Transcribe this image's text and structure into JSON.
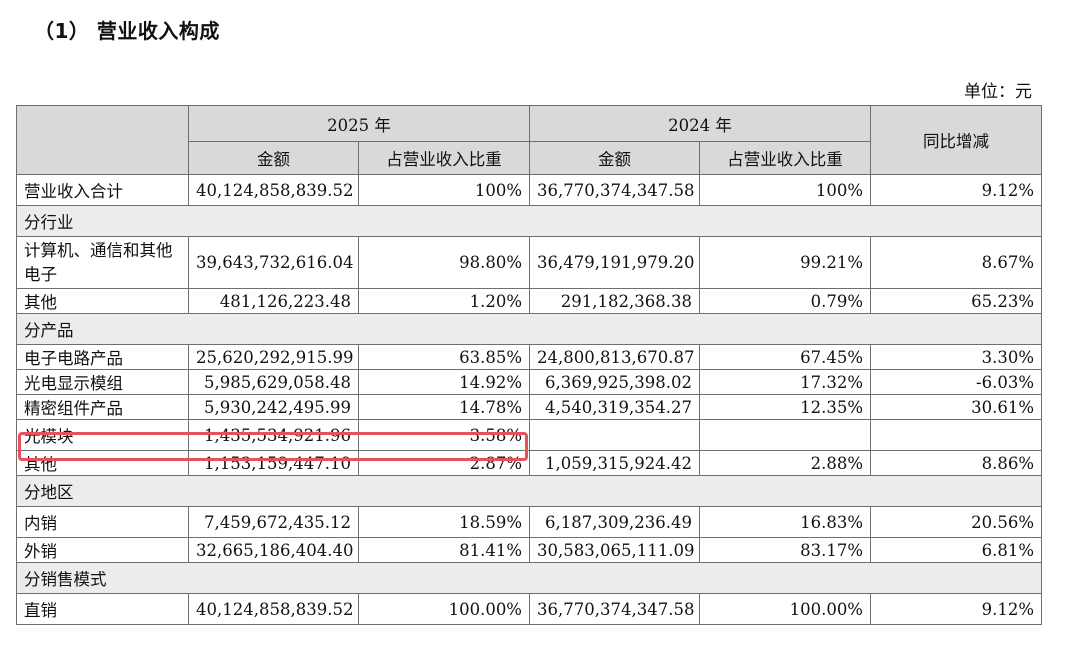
{
  "title": "（1） 营业收入构成",
  "unit": "单位：元",
  "headers": {
    "year_current": "2025 年",
    "year_prior": "2024 年",
    "yoy": "同比增减",
    "amount": "金额",
    "share": "占营业收入比重"
  },
  "total": {
    "label": "营业收入合计",
    "amount_2025": "40,124,858,839.52",
    "share_2025": "100%",
    "amount_2024": "36,770,374,347.58",
    "share_2024": "100%",
    "yoy": "9.12%"
  },
  "groups": {
    "industry": "分行业",
    "product": "分产品",
    "region": "分地区",
    "sales_model": "分销售模式"
  },
  "rows": {
    "industry": [
      {
        "label": "计算机、通信和其他电子",
        "amount_2025": "39,643,732,616.04",
        "share_2025": "98.80%",
        "amount_2024": "36,479,191,979.20",
        "share_2024": "99.21%",
        "yoy": "8.67%"
      },
      {
        "label": "其他",
        "amount_2025": "481,126,223.48",
        "share_2025": "1.20%",
        "amount_2024": "291,182,368.38",
        "share_2024": "0.79%",
        "yoy": "65.23%"
      }
    ],
    "product": [
      {
        "label": "电子电路产品",
        "amount_2025": "25,620,292,915.99",
        "share_2025": "63.85%",
        "amount_2024": "24,800,813,670.87",
        "share_2024": "67.45%",
        "yoy": "3.30%"
      },
      {
        "label": "光电显示模组",
        "amount_2025": "5,985,629,058.48",
        "share_2025": "14.92%",
        "amount_2024": "6,369,925,398.02",
        "share_2024": "17.32%",
        "yoy": "-6.03%"
      },
      {
        "label": "精密组件产品",
        "amount_2025": "5,930,242,495.99",
        "share_2025": "14.78%",
        "amount_2024": "4,540,319,354.27",
        "share_2024": "12.35%",
        "yoy": "30.61%"
      },
      {
        "label": "光模块",
        "amount_2025": "1,435,534,921.96",
        "share_2025": "3.58%",
        "amount_2024": "",
        "share_2024": "",
        "yoy": ""
      },
      {
        "label": "其他",
        "amount_2025": "1,153,159,447.10",
        "share_2025": "2.87%",
        "amount_2024": "1,059,315,924.42",
        "share_2024": "2.88%",
        "yoy": "8.86%"
      }
    ],
    "region": [
      {
        "label": "内销",
        "amount_2025": "7,459,672,435.12",
        "share_2025": "18.59%",
        "amount_2024": "6,187,309,236.49",
        "share_2024": "16.83%",
        "yoy": "20.56%"
      },
      {
        "label": "外销",
        "amount_2025": "32,665,186,404.40",
        "share_2025": "81.41%",
        "amount_2024": "30,583,065,111.09",
        "share_2024": "83.17%",
        "yoy": "6.81%"
      }
    ],
    "sales_model": [
      {
        "label": "直销",
        "amount_2025": "40,124,858,839.52",
        "share_2025": "100.00%",
        "amount_2024": "36,770,374,347.58",
        "share_2024": "100.00%",
        "yoy": "9.12%"
      }
    ]
  },
  "highlight_color": "#e8505b"
}
